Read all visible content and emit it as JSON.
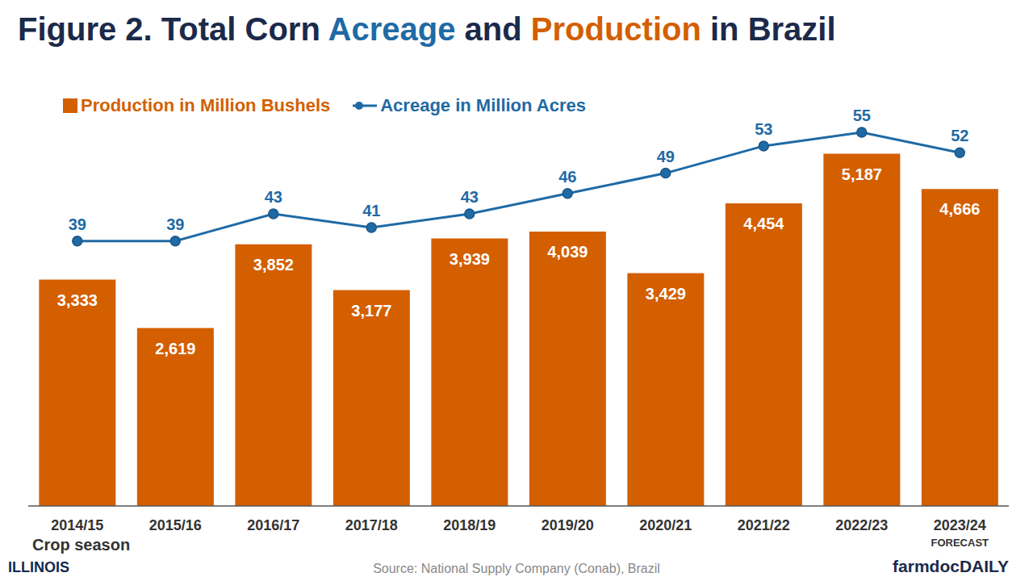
{
  "chart_data": {
    "type": "bar",
    "title": "Figure 2. Total Corn Acreage and Production in Brazil",
    "categories": [
      "2014/15",
      "2015/16",
      "2016/17",
      "2017/18",
      "2018/19",
      "2019/20",
      "2020/21",
      "2021/22",
      "2022/23",
      "2023/24"
    ],
    "series": [
      {
        "name": "Production in Million Bushels",
        "type": "bar",
        "color": "#d35f00",
        "values": [
          3333,
          2619,
          3852,
          3177,
          3939,
          4039,
          3429,
          4454,
          5187,
          4666
        ],
        "value_labels": [
          "3,333",
          "2,619",
          "3,852",
          "3,177",
          "3,939",
          "4,039",
          "3,429",
          "4,454",
          "5,187",
          "4,666"
        ]
      },
      {
        "name": "Acreage in Million Acres",
        "type": "line",
        "color": "#1f6aa5",
        "axis": "y2",
        "marker": "circle",
        "values": [
          39,
          39,
          43,
          41,
          43,
          46,
          49,
          53,
          55,
          52
        ]
      }
    ],
    "ylim": [
      0,
      6000
    ],
    "yticks": [
      0,
      6000
    ],
    "y2lim": [
      0,
      60
    ],
    "y2ticks": [
      0,
      60
    ],
    "grid": false,
    "legend": "top-left",
    "data_labels": true,
    "tick_labels": "x",
    "x_label": "Crop season",
    "annotations": [
      {
        "category": "2023/24",
        "text": "FORECAST"
      }
    ],
    "source": "Source: National Supply Company (Conab), Brazil",
    "brand": [
      "ILLINOIS",
      "farmdocDAILY"
    ]
  }
}
